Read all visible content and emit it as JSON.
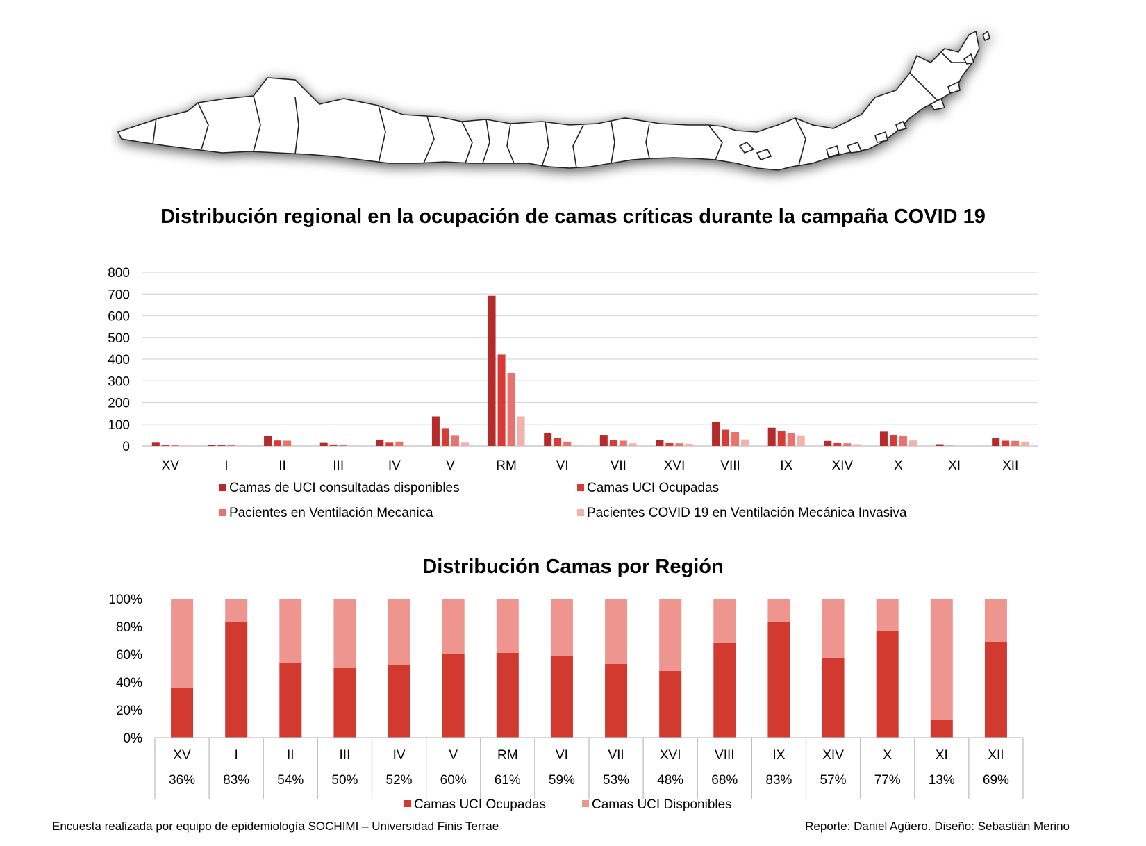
{
  "chart_data": [
    {
      "type": "bar",
      "title": "Distribución regional en la ocupación de camas críticas durante la campaña COVID 19",
      "categories": [
        "XV",
        "I",
        "II",
        "III",
        "IV",
        "V",
        "RM",
        "VI",
        "VII",
        "XVI",
        "VIII",
        "IX",
        "XIV",
        "X",
        "XI",
        "XII"
      ],
      "ylim": [
        0,
        800
      ],
      "yticks": [
        0,
        100,
        200,
        300,
        400,
        500,
        600,
        700,
        800
      ],
      "grid": true,
      "legend_position": "bottom",
      "series": [
        {
          "name": "Camas de UCI consultadas disponibles",
          "color": "#b52a2a",
          "values": [
            15,
            6,
            46,
            14,
            29,
            136,
            692,
            61,
            51,
            27,
            111,
            84,
            23,
            66,
            8,
            35
          ]
        },
        {
          "name": "Camas UCI Ocupadas",
          "color": "#d83a36",
          "values": [
            5,
            5,
            25,
            7,
            15,
            82,
            421,
            36,
            27,
            13,
            75,
            70,
            13,
            51,
            1,
            24
          ]
        },
        {
          "name": "Pacientes en Ventilación Mecanica",
          "color": "#e8726c",
          "values": [
            4,
            4,
            24,
            5,
            20,
            50,
            336,
            20,
            24,
            12,
            64,
            61,
            12,
            45,
            0,
            23
          ]
        },
        {
          "name": "Pacientes COVID 19 en Ventilación Mecánica Invasiva",
          "color": "#f3b1ad",
          "values": [
            2,
            1,
            0,
            1,
            0,
            15,
            136,
            2,
            12,
            10,
            30,
            49,
            8,
            25,
            0,
            20
          ]
        }
      ]
    },
    {
      "type": "bar",
      "stacked": true,
      "title": "Distribución Camas por Región",
      "categories": [
        "XV",
        "I",
        "II",
        "III",
        "IV",
        "V",
        "RM",
        "VI",
        "VII",
        "XVI",
        "VIII",
        "IX",
        "XIV",
        "X",
        "XI",
        "XII"
      ],
      "yticks": [
        "0%",
        "20%",
        "40%",
        "60%",
        "80%",
        "100%"
      ],
      "ylim": [
        0,
        100
      ],
      "legend_position": "bottom",
      "series": [
        {
          "name": "Camas UCI Ocupadas",
          "color": "#d23a30",
          "values": [
            36,
            83,
            54,
            50,
            52,
            60,
            61,
            59,
            53,
            48,
            68,
            83,
            57,
            77,
            13,
            69
          ]
        },
        {
          "name": "Camas UCI Disponibles",
          "color": "#ef9590",
          "values": [
            64,
            17,
            46,
            50,
            48,
            40,
            39,
            41,
            47,
            52,
            32,
            17,
            43,
            23,
            87,
            31
          ]
        }
      ],
      "table_row": [
        "36%",
        "83%",
        "54%",
        "50%",
        "52%",
        "60%",
        "61%",
        "59%",
        "53%",
        "48%",
        "68%",
        "83%",
        "57%",
        "77%",
        "13%",
        "69%"
      ]
    }
  ],
  "footer": {
    "left": "Encuesta realizada por equipo de epidemiología SOCHIMI – Universidad Finis Terrae",
    "right": "Reporte: Daniel Agüero. Diseño: Sebastián Merino"
  }
}
